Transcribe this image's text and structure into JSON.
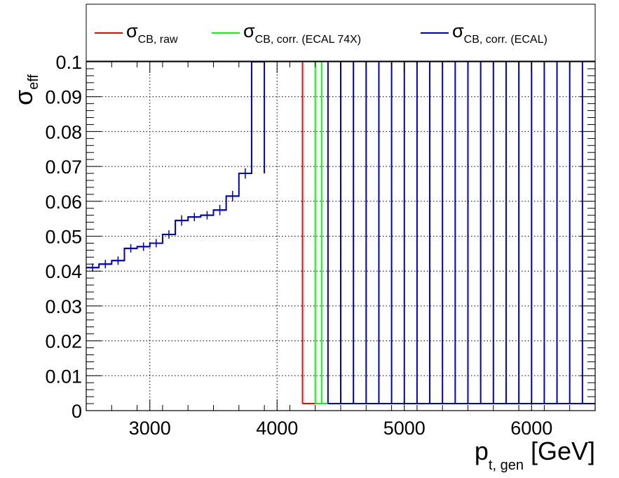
{
  "chart_data": {
    "type": "line",
    "xlabel": "p",
    "xlabel_sub": "t, gen",
    "xlabel_unit": " [GeV]",
    "ylabel": "σ",
    "ylabel_sub": "eff",
    "xlim": [
      2500,
      6500
    ],
    "ylim": [
      0,
      0.1
    ],
    "x_ticks": [
      3000,
      4000,
      5000,
      6000
    ],
    "x_tick_labels": [
      "3000",
      "4000",
      "5000",
      "6000"
    ],
    "y_ticks": [
      0,
      0.01,
      0.02,
      0.03,
      0.04,
      0.05,
      0.06,
      0.07,
      0.08,
      0.09,
      0.1
    ],
    "y_tick_labels": [
      "0",
      "0.01",
      "0.02",
      "0.03",
      "0.04",
      "0.05",
      "0.06",
      "0.07",
      "0.08",
      "0.09",
      "0.1"
    ],
    "grid": true,
    "legend_position": "top",
    "bins": {
      "x_start": 2500,
      "width": 100
    },
    "series": [
      {
        "name": "σ",
        "name_sub": "CB, raw",
        "color": "#ff0000",
        "spike_x": 4200,
        "floor": 0.002,
        "floor_range": [
          4200,
          4300
        ]
      },
      {
        "name": "σ",
        "name_sub": "CB, corr. (ECAL 74X)",
        "color": "#00ff00",
        "spike_x": [
          4300,
          4350
        ],
        "floor": 0.002,
        "floor_range": [
          4300,
          4400
        ]
      },
      {
        "name": "σ",
        "name_sub": "CB, corr. (ECAL)",
        "color": "#0000cc",
        "values": [
          0.041,
          0.042,
          0.043,
          0.0465,
          0.047,
          0.048,
          0.0505,
          0.0545,
          0.0555,
          0.056,
          0.0575,
          0.0615,
          0.068,
          0.1
        ],
        "errors": [
          0.0012,
          0.0012,
          0.0012,
          0.0012,
          0.0012,
          0.0012,
          0.0012,
          0.0015,
          0.0012,
          0.0012,
          0.0015,
          0.0015,
          0.0015,
          0
        ],
        "spike_x": [
          4400,
          4500,
          4600,
          4700,
          4800,
          4900,
          5000,
          5100,
          5200,
          5300,
          5400,
          5500,
          5600,
          5700,
          5800,
          5900,
          6000,
          6100,
          6200,
          6300,
          6400
        ],
        "floor": 0.002,
        "floor_range": [
          4400,
          6500
        ]
      }
    ]
  }
}
